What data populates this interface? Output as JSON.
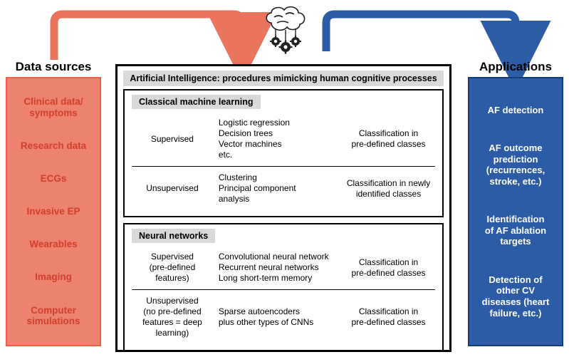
{
  "colors": {
    "left_bg": "#ee8270",
    "left_border": "#e95f48",
    "left_text": "#d0402c",
    "right_bg": "#2b5ca5",
    "right_border": "#153d7a",
    "arrow_left": "#e8745e",
    "arrow_right": "#2b5ca5",
    "gray_banner": "#d9d9d9"
  },
  "left": {
    "title": "Data sources",
    "items": [
      "Clinical data/\nsymptoms",
      "Research data",
      "ECGs",
      "Invasive EP",
      "Wearables",
      "Imaging",
      "Computer\nsimulations"
    ]
  },
  "right": {
    "title": "Applications",
    "items": [
      "AF detection",
      "AF outcome\nprediction\n(recurrences,\nstroke, etc.)",
      "Identification\nof AF ablation\ntargets",
      "Detection of\nother CV\ndiseases (heart\nfailure, etc.)"
    ]
  },
  "center": {
    "ai_banner": "Artificial Intelligence: procedures mimicking human cognitive processes",
    "classical": {
      "label": "Classical machine learning",
      "rows": [
        {
          "c1": "Supervised",
          "c2": "Logistic regression\nDecision trees\nVector machines\netc.",
          "c3": "Classification in\npre-defined classes"
        },
        {
          "c1": "Unsupervised",
          "c2": "Clustering\nPrincipal component\nanalysis",
          "c3": "Classification in newly\nidentified classes"
        }
      ]
    },
    "nn": {
      "label": "Neural networks",
      "rows": [
        {
          "c1": "Supervised\n(pre-defined\nfeatures)",
          "c2": "Convolutional neural network\nRecurrent neural networks\nLong short-term memory",
          "c3": "Classification in\npre-defined classes"
        },
        {
          "c1": "Unsupervised\n(no pre-defined\nfeatures = deep\nlearning)",
          "c2": "Sparse autoencoders\nplus other types of CNNs",
          "c3": "Classification in\npre-defined classes"
        }
      ]
    }
  }
}
